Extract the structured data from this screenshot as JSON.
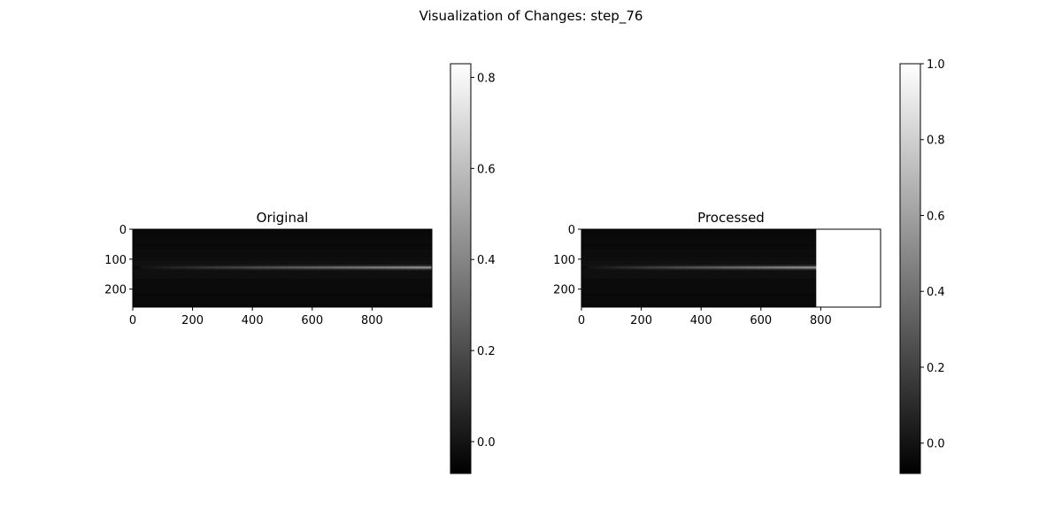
{
  "figure": {
    "title": "Visualization of Changes: step_76"
  },
  "chart_data": [
    {
      "type": "heatmap",
      "title": "Original",
      "colormap": "gray",
      "xlim": [
        0,
        1000
      ],
      "ylim": [
        260,
        0
      ],
      "xticks": [
        0,
        200,
        400,
        600,
        800
      ],
      "yticks": [
        0,
        100,
        200
      ],
      "data_x_extent": 1000,
      "bright_row": 128,
      "intensity_start": 0.05,
      "intensity_end": 0.55,
      "background_level": 0.03,
      "colorbar": {
        "vmin": -0.07,
        "vmax": 0.83,
        "ticks": [
          0.0,
          0.2,
          0.4,
          0.6,
          0.8
        ]
      }
    },
    {
      "type": "heatmap",
      "title": "Processed",
      "colormap": "gray",
      "xlim": [
        0,
        1000
      ],
      "ylim": [
        260,
        0
      ],
      "xticks": [
        0,
        200,
        400,
        600,
        800
      ],
      "yticks": [
        0,
        100,
        200
      ],
      "data_x_extent": 785,
      "fill_region_value": 1.0,
      "bright_row": 128,
      "intensity_start": 0.05,
      "intensity_end": 0.55,
      "background_level": 0.03,
      "colorbar": {
        "vmin": -0.08,
        "vmax": 1.0,
        "ticks": [
          0.0,
          0.2,
          0.4,
          0.6,
          0.8,
          1.0
        ]
      }
    }
  ]
}
